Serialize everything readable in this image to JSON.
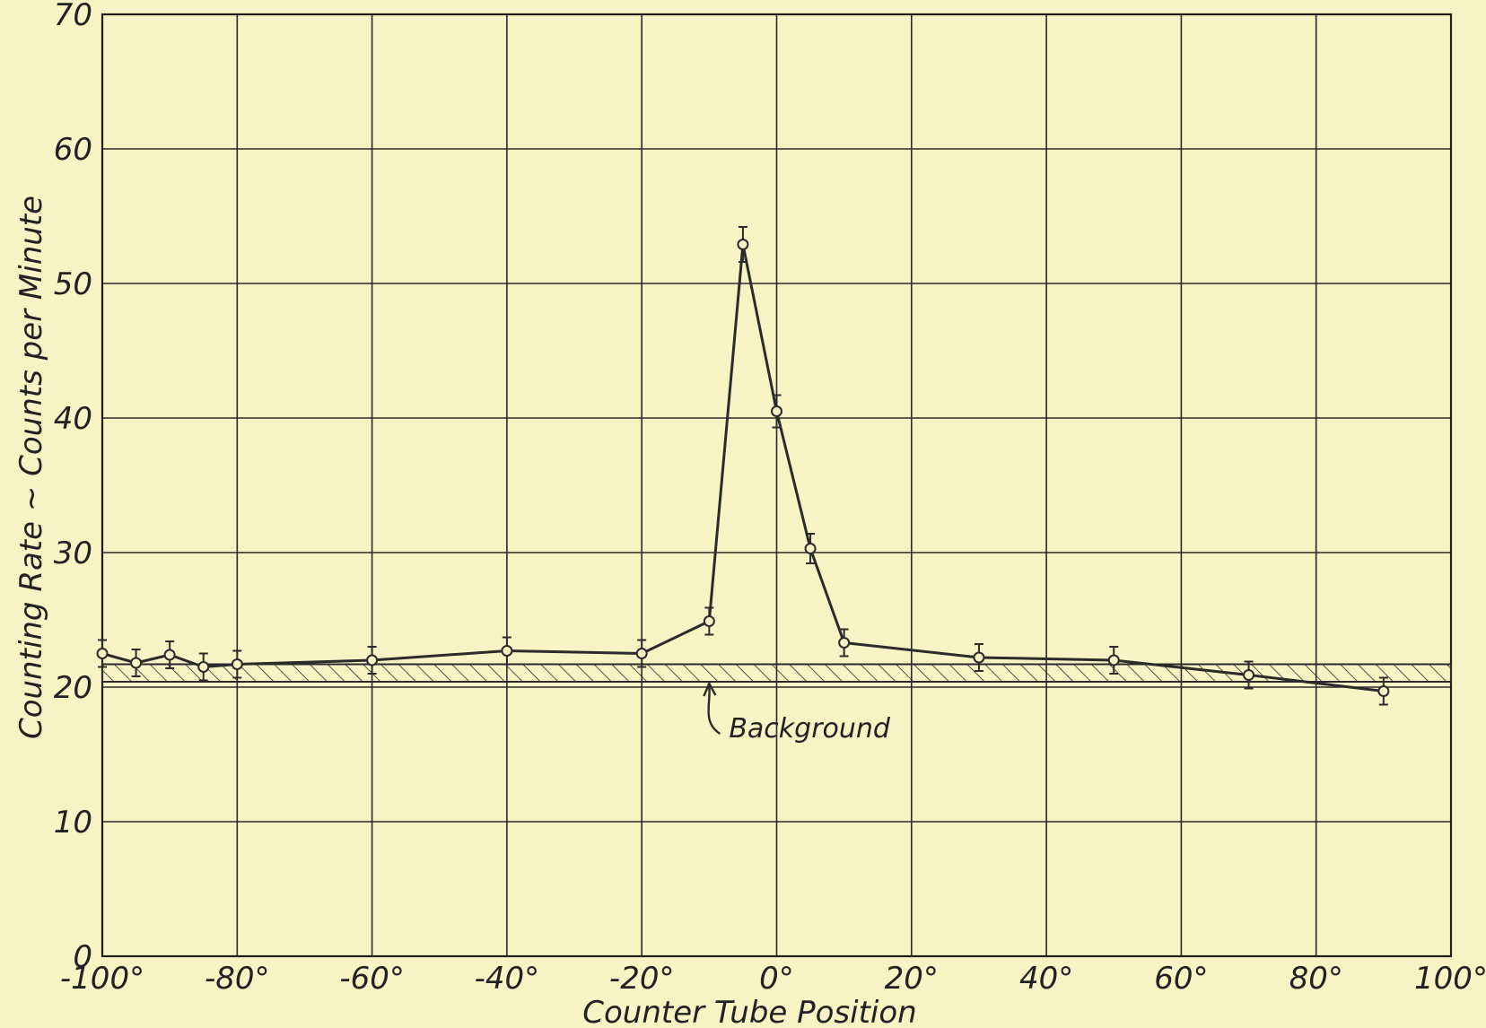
{
  "chart_data": {
    "type": "line",
    "title": "",
    "xlabel": "Counter Tube Position",
    "ylabel": "Counting Rate ~ Counts per Minute",
    "xlim": [
      -100,
      100
    ],
    "ylim": [
      0,
      70
    ],
    "x_ticks": [
      -100,
      -80,
      -60,
      -40,
      -20,
      0,
      20,
      40,
      60,
      80,
      100
    ],
    "x_tick_labels": [
      "-100°",
      "-80°",
      "-60°",
      "-40°",
      "-20°",
      "0°",
      "20°",
      "40°",
      "60°",
      "80°",
      "100°"
    ],
    "y_ticks": [
      0,
      10,
      20,
      30,
      40,
      50,
      60,
      70
    ],
    "y_tick_labels": [
      "0",
      "10",
      "20",
      "30",
      "40",
      "50",
      "60",
      "70"
    ],
    "grid": true,
    "series": [
      {
        "x": [
          -100,
          -95,
          -90,
          -85,
          -80,
          -60,
          -40,
          -20,
          -10,
          -5,
          0,
          5,
          10,
          30,
          50,
          70,
          90
        ],
        "y": [
          22.5,
          21.8,
          22.4,
          21.5,
          21.7,
          22.0,
          22.7,
          22.5,
          24.9,
          52.9,
          40.5,
          30.3,
          23.3,
          22.2,
          22.0,
          20.9,
          19.7
        ],
        "error": [
          1.0,
          1.0,
          1.0,
          1.0,
          1.0,
          1.0,
          1.0,
          1.0,
          1.0,
          1.3,
          1.2,
          1.1,
          1.0,
          1.0,
          1.0,
          1.0,
          1.0
        ]
      }
    ],
    "background_band": {
      "low": 20.4,
      "high": 21.7
    },
    "annotations": [
      {
        "text": "Background",
        "x": -10,
        "y": 20.4
      }
    ]
  }
}
